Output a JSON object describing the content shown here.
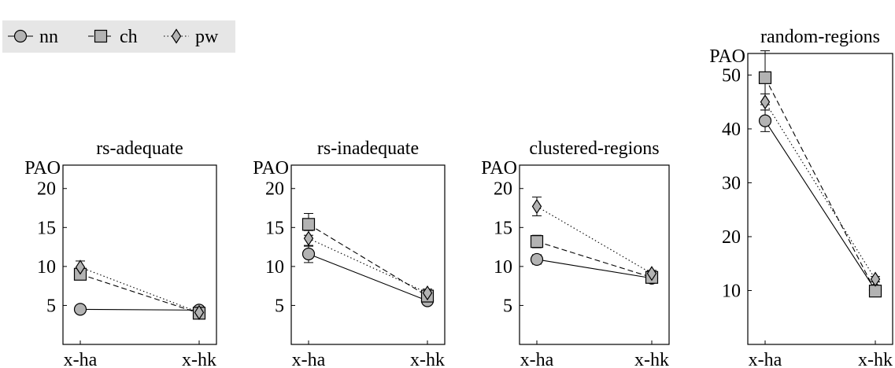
{
  "legend": {
    "items": [
      {
        "label": "nn",
        "marker": "circle",
        "dash": "solid"
      },
      {
        "label": "ch",
        "marker": "square",
        "dash": "dashed"
      },
      {
        "label": "pw",
        "marker": "diamond",
        "dash": "dotted"
      }
    ],
    "placement": "top-left"
  },
  "colors": {
    "marker_fill": "#b3b3b3",
    "legend_bg": "#e6e6e6",
    "line": "#000000"
  },
  "chart_data": [
    {
      "type": "line",
      "title": "rs-adequate",
      "ylabel": "PAO",
      "categories": [
        "x-ha",
        "x-hk"
      ],
      "ylim": [
        0,
        23
      ],
      "yticks": [
        5,
        10,
        15,
        20
      ],
      "series": [
        {
          "name": "nn",
          "values": [
            4.5,
            4.4
          ],
          "errors": [
            0,
            0.3
          ]
        },
        {
          "name": "ch",
          "values": [
            9.0,
            4.0
          ],
          "errors": [
            0.6,
            0.4
          ]
        },
        {
          "name": "pw",
          "values": [
            9.9,
            4.1
          ],
          "errors": [
            0.8,
            0.4
          ]
        }
      ]
    },
    {
      "type": "line",
      "title": "rs-inadequate",
      "ylabel": "PAO",
      "categories": [
        "x-ha",
        "x-hk"
      ],
      "ylim": [
        0,
        23
      ],
      "yticks": [
        5,
        10,
        15,
        20
      ],
      "series": [
        {
          "name": "nn",
          "values": [
            11.6,
            5.6
          ],
          "errors": [
            1.1,
            0.3
          ]
        },
        {
          "name": "ch",
          "values": [
            15.4,
            6.2
          ],
          "errors": [
            1.4,
            0.5
          ]
        },
        {
          "name": "pw",
          "values": [
            13.6,
            6.6
          ],
          "errors": [
            1.0,
            0.5
          ]
        }
      ]
    },
    {
      "type": "line",
      "title": "clustered-regions",
      "ylabel": "PAO",
      "categories": [
        "x-ha",
        "x-hk"
      ],
      "ylim": [
        0,
        23
      ],
      "yticks": [
        5,
        10,
        15,
        20
      ],
      "series": [
        {
          "name": "nn",
          "values": [
            10.9,
            8.5
          ],
          "errors": [
            0.6,
            0.3
          ]
        },
        {
          "name": "ch",
          "values": [
            13.2,
            8.6
          ],
          "errors": [
            0.8,
            0.3
          ]
        },
        {
          "name": "pw",
          "values": [
            17.7,
            9.1
          ],
          "errors": [
            1.2,
            0.4
          ]
        }
      ]
    },
    {
      "type": "line",
      "title": "random-regions",
      "ylabel": "PAO",
      "categories": [
        "x-ha",
        "x-hk"
      ],
      "ylim": [
        0,
        54
      ],
      "yticks": [
        10,
        20,
        30,
        40,
        50
      ],
      "series": [
        {
          "name": "nn",
          "values": [
            41.5,
            10.1
          ],
          "errors": [
            2.0,
            0.5
          ]
        },
        {
          "name": "ch",
          "values": [
            49.5,
            9.9
          ],
          "errors": [
            5.0,
            0.5
          ]
        },
        {
          "name": "pw",
          "values": [
            45.0,
            12.1
          ],
          "errors": [
            1.5,
            0.5
          ]
        }
      ]
    }
  ]
}
